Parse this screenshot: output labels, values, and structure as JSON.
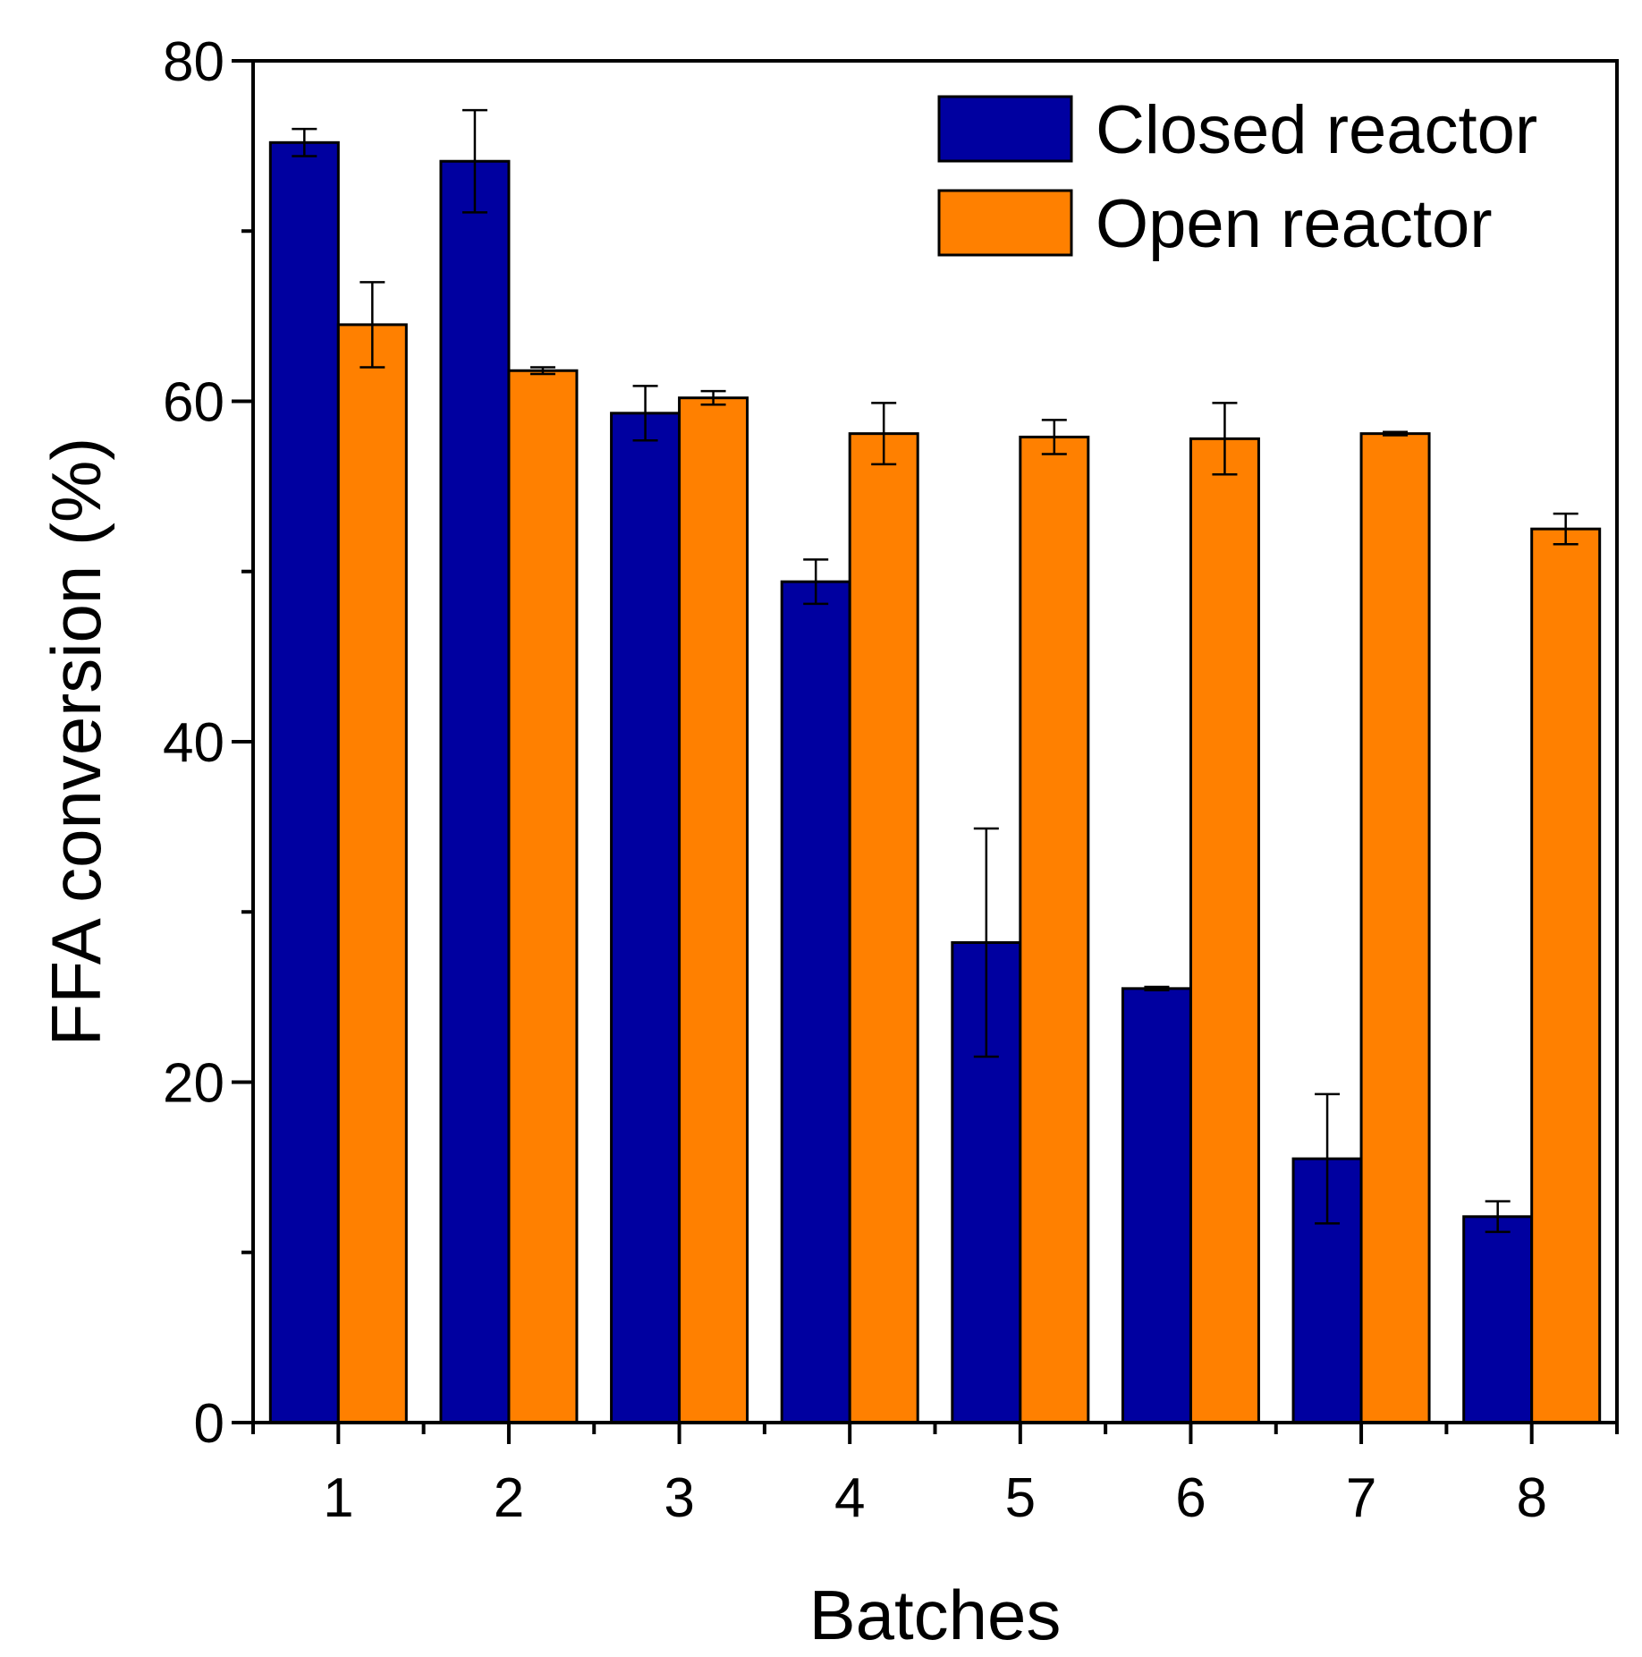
{
  "chart_data": {
    "type": "bar",
    "title": "",
    "xlabel": "Batches",
    "ylabel": "FFA conversion (%)",
    "ylim": [
      0,
      80
    ],
    "yticks": [
      0,
      20,
      40,
      60,
      80
    ],
    "yticks_minor": [
      10,
      30,
      50,
      70
    ],
    "categories": [
      "1",
      "2",
      "3",
      "4",
      "5",
      "6",
      "7",
      "8"
    ],
    "legend_position": "top-right",
    "series": [
      {
        "name": "Closed reactor",
        "color": "#0000A0",
        "values": [
          75.2,
          74.1,
          59.3,
          49.4,
          28.2,
          25.5,
          15.5,
          12.1
        ],
        "errors": [
          0.8,
          3.0,
          1.6,
          1.3,
          6.7,
          0.1,
          3.8,
          0.9
        ]
      },
      {
        "name": "Open reactor",
        "color": "#FF8000",
        "values": [
          64.5,
          61.8,
          60.2,
          58.1,
          57.9,
          57.8,
          58.1,
          52.5
        ],
        "errors": [
          2.5,
          0.2,
          0.4,
          1.8,
          1.0,
          2.1,
          0.1,
          0.9
        ]
      }
    ]
  }
}
